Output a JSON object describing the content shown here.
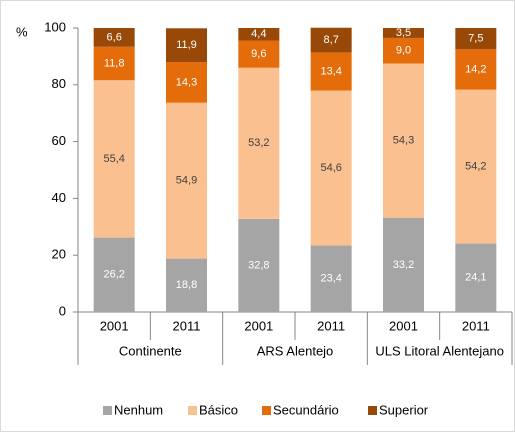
{
  "chart_data": {
    "type": "stacked_bar",
    "y_label": "%",
    "categories": [
      "2001",
      "2011",
      "2001",
      "2011",
      "2001",
      "2011"
    ],
    "groups": [
      "Continente",
      "ARS Alentejo",
      "ULS Litoral Alentejano"
    ],
    "series": [
      {
        "name": "Nenhum",
        "color": "#a5a5a5",
        "values": [
          26.2,
          18.8,
          32.8,
          23.4,
          33.2,
          24.1
        ],
        "value_labels": [
          "26,2",
          "18,8",
          "32,8",
          "23,4",
          "33,2",
          "24,1"
        ]
      },
      {
        "name": "Básico",
        "color": "#fac090",
        "values": [
          55.4,
          54.9,
          53.2,
          54.6,
          54.3,
          54.2
        ],
        "value_labels": [
          "55,4",
          "54,9",
          "53,2",
          "54,6",
          "54,3",
          "54,2"
        ]
      },
      {
        "name": "Secundário",
        "color": "#e46c0a",
        "values": [
          11.8,
          14.3,
          9.6,
          13.4,
          9.0,
          14.2
        ],
        "value_labels": [
          "11,8",
          "14,3",
          "9,6",
          "13,4",
          "9,0",
          "14,2"
        ]
      },
      {
        "name": "Superior",
        "color": "#984807",
        "values": [
          6.6,
          11.9,
          4.4,
          8.7,
          3.5,
          7.5
        ],
        "value_labels": [
          "6,6",
          "11,9",
          "4,4",
          "8,7",
          "3,5",
          "7,5"
        ]
      }
    ],
    "ylim": [
      0,
      100
    ],
    "yticks": [
      0,
      20,
      40,
      60,
      80,
      100
    ],
    "legend": "bottom"
  }
}
